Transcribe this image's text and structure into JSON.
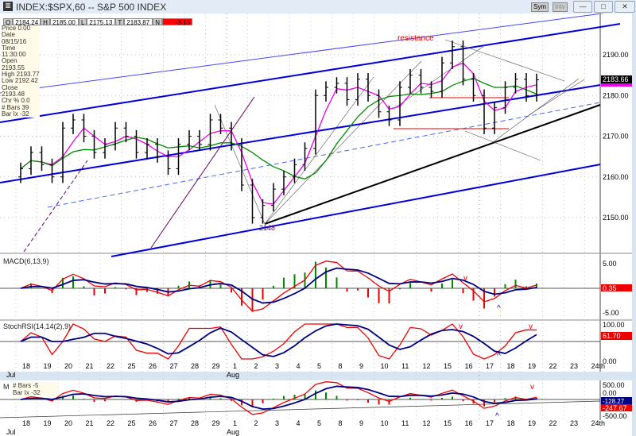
{
  "window": {
    "title": "INDEX:$SPX,60 -- S&P 500 INDEX",
    "sym_btn": "Sym",
    "intv_btn": "Intv",
    "minimize": "—",
    "maximize": "□",
    "close": "✕"
  },
  "ohlc_bar": {
    "o_label": "O",
    "o": "2184.24",
    "h_label": "H",
    "h": "2185.00",
    "l_label": "L",
    "l": "2175.13",
    "t_label": "T",
    "t": "2183.87",
    "n_label": "N",
    "n": "-3.15"
  },
  "info_panel": [
    "Price 0.00",
    "Date 08/15/16",
    "Time 11:30:00",
    "Open 2193.55",
    "High 2193.77",
    "Low 2192.42",
    "Close 2193.48",
    "Chr % 0.0",
    "# Bars 39",
    "Bar Ix -32"
  ],
  "lower_info": [
    "# Bars -5",
    "Bar Ix -32"
  ],
  "chart_data": [
    {
      "type": "ohlc",
      "title": "INDEX:$SPX,60 -- S&P 500 INDEX",
      "ylim": [
        2145,
        2198
      ],
      "yticks": [
        "2190.00",
        "2180.00",
        "2170.00",
        "2160.00",
        "2150.00"
      ],
      "last_value": "2183.66",
      "x_ticks": [
        "18",
        "19",
        "20",
        "21",
        "22",
        "25",
        "26",
        "27",
        "28",
        "29",
        "1",
        "2",
        "3",
        "4",
        "5",
        "8",
        "9",
        "10",
        "11",
        "12",
        "15",
        "16",
        "17",
        "18",
        "19",
        "22",
        "23",
        "24th"
      ],
      "month_labels": {
        "Jul": 0,
        "Aug": 10
      },
      "closes": [
        2162,
        2166,
        2163,
        2160,
        2172,
        2174,
        2170,
        2166,
        2168,
        2172,
        2170,
        2166,
        2168,
        2165,
        2162,
        2168,
        2170,
        2168,
        2174,
        2172,
        2168,
        2158,
        2150,
        2153,
        2157,
        2160,
        2163,
        2167,
        2180,
        2182,
        2183,
        2179,
        2184,
        2180,
        2176,
        2174,
        2182,
        2185,
        2182,
        2181,
        2188,
        2192,
        2184,
        2180,
        2172,
        2177,
        2182,
        2184,
        2180,
        2183.87
      ],
      "annotations": {
        "resistance": "resistance",
        "low": "2148"
      },
      "colors": {
        "channel": "#0000dd",
        "ma_fast": "#ee00ee",
        "ma_slow": "#008800",
        "support": "#000000",
        "horizontal": "#ee0000"
      }
    },
    {
      "type": "line",
      "title": "MACD(6,13,9)",
      "yticks": [
        "5.00",
        "-5.00"
      ],
      "last_value": "0.35",
      "marks": [
        "v",
        "^"
      ],
      "colors": {
        "macd": "#ee0000",
        "signal": "#000080",
        "hist_pos": "#008800",
        "hist_neg": "#ee0000"
      }
    },
    {
      "type": "line",
      "title": "StochRSI(14,14(2),9)",
      "yticks": [
        "100.00",
        "0.00"
      ],
      "last_value": "61.70",
      "marks": [
        "v",
        "v",
        "^"
      ]
    },
    {
      "type": "line",
      "title": "M",
      "yticks": [
        "500.00",
        "0.00",
        "-500.00"
      ],
      "last_values": [
        "-128.27",
        "-247.67"
      ],
      "marks": [
        "v",
        "^"
      ]
    }
  ]
}
